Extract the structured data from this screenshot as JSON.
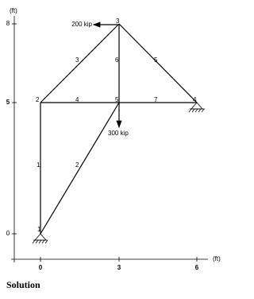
{
  "axes": {
    "y_unit": "(ft)",
    "x_unit": "(ft)",
    "y_labels": [
      8,
      5,
      0
    ],
    "x_labels": [
      0,
      3,
      6
    ]
  },
  "nodes": [
    {
      "label": "1"
    },
    {
      "label": "2"
    },
    {
      "label": "3"
    },
    {
      "label": "4"
    },
    {
      "label": "5"
    }
  ],
  "members": [
    {
      "label": "1"
    },
    {
      "label": "2"
    },
    {
      "label": "3"
    },
    {
      "label": "4"
    },
    {
      "label": "5"
    },
    {
      "label": "6"
    },
    {
      "label": "7"
    }
  ],
  "loads": [
    {
      "label": "200 kip"
    },
    {
      "label": "300 kip"
    }
  ],
  "footer": "Solution"
}
